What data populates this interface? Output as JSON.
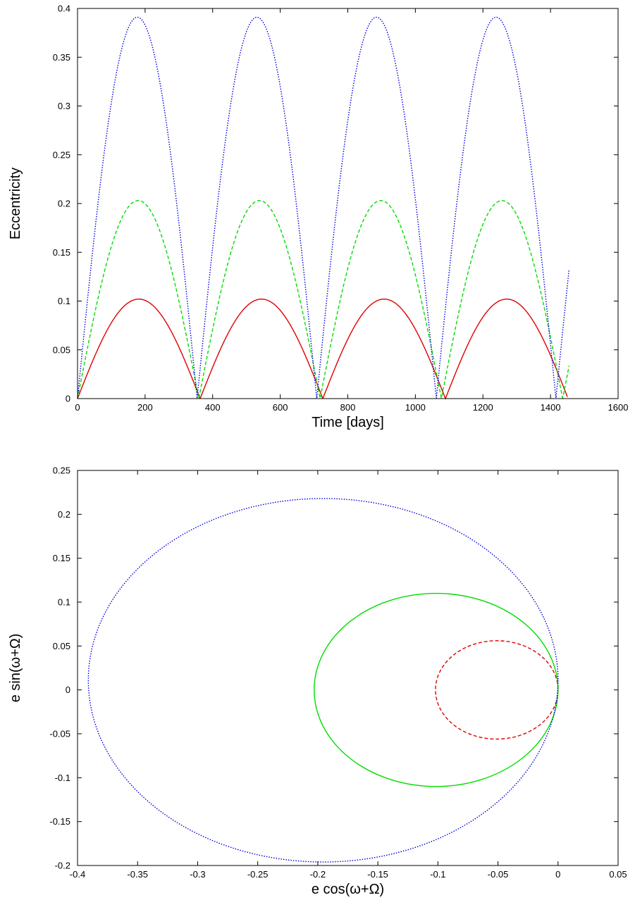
{
  "chart_data": [
    {
      "type": "line",
      "xlabel": "Time [days]",
      "ylabel": "Eccentricity",
      "xlim": [
        0,
        1600
      ],
      "ylim": [
        0,
        0.4
      ],
      "x_ticks": [
        0,
        200,
        400,
        600,
        800,
        1000,
        1200,
        1400,
        1600
      ],
      "x_tick_labels": [
        "0",
        "200",
        "400",
        "600",
        "800",
        "1000",
        "1200",
        "1400",
        "1600"
      ],
      "y_ticks": [
        0,
        0.05,
        0.1,
        0.15,
        0.2,
        0.25,
        0.3,
        0.35,
        0.4
      ],
      "y_tick_labels": [
        "0",
        "0.05",
        "0.1",
        "0.15",
        "0.2",
        "0.25",
        "0.3",
        "0.35",
        "0.4"
      ],
      "grid": false,
      "legend": "none",
      "series": [
        {
          "color": "#e00000",
          "style": "solid",
          "peak": 0.102,
          "period": 363,
          "x_end": 1450,
          "points": [
            [
              0,
              0
            ],
            [
              181,
              0.102
            ],
            [
              362,
              0
            ],
            [
              544,
              0.102
            ],
            [
              725,
              0
            ],
            [
              906,
              0.102
            ],
            [
              1087,
              0
            ],
            [
              1268,
              0.102
            ],
            [
              1450,
              0
            ]
          ]
        },
        {
          "color": "#00dd00",
          "style": "dashed",
          "peak": 0.203,
          "period": 359,
          "x_end": 1455,
          "points": [
            [
              0,
              0
            ],
            [
              180,
              0.203
            ],
            [
              359,
              0
            ],
            [
              539,
              0.203
            ],
            [
              718,
              0
            ],
            [
              898,
              0.203
            ],
            [
              1077,
              0
            ],
            [
              1257,
              0.203
            ],
            [
              1436,
              0
            ],
            [
              1455,
              0.015
            ]
          ]
        },
        {
          "color": "#0000dd",
          "style": "dotted",
          "peak": 0.391,
          "period": 354,
          "x_end": 1455,
          "points": [
            [
              0,
              0
            ],
            [
              177,
              0.391
            ],
            [
              354,
              0
            ],
            [
              531,
              0.391
            ],
            [
              708,
              0
            ],
            [
              885,
              0.391
            ],
            [
              1062,
              0
            ],
            [
              1239,
              0.391
            ],
            [
              1416,
              0
            ],
            [
              1455,
              0.128
            ]
          ]
        }
      ]
    },
    {
      "type": "line",
      "xlabel": "e cos(ω+Ω)",
      "ylabel": "e sin(ω+Ω)",
      "xlim": [
        -0.4,
        0.05
      ],
      "ylim": [
        -0.2,
        0.25
      ],
      "x_ticks": [
        -0.4,
        -0.35,
        -0.3,
        -0.25,
        -0.2,
        -0.15,
        -0.1,
        -0.05,
        0,
        0.05
      ],
      "x_tick_labels": [
        "-0.4",
        "-0.35",
        "-0.3",
        "-0.25",
        "-0.2",
        "-0.15",
        "-0.1",
        "-0.05",
        "0",
        "0.05"
      ],
      "y_ticks": [
        -0.2,
        -0.15,
        -0.1,
        -0.05,
        0,
        0.05,
        0.1,
        0.15,
        0.2,
        0.25
      ],
      "y_tick_labels": [
        "-0.2",
        "-0.15",
        "-0.1",
        "-0.05",
        "0",
        "0.05",
        "0.1",
        "0.15",
        "0.2",
        "0.25"
      ],
      "grid": false,
      "legend": "none",
      "series": [
        {
          "color": "#e00000",
          "style": "dashed",
          "center": [
            -0.051,
            0
          ],
          "radii": [
            0.051,
            0.056
          ]
        },
        {
          "color": "#00dd00",
          "style": "solid",
          "center": [
            -0.1015,
            0
          ],
          "radii": [
            0.1015,
            0.11
          ]
        },
        {
          "color": "#0000dd",
          "style": "dotted",
          "center": [
            -0.1955,
            0.011
          ],
          "radii": [
            0.1955,
            0.207
          ]
        }
      ]
    }
  ]
}
